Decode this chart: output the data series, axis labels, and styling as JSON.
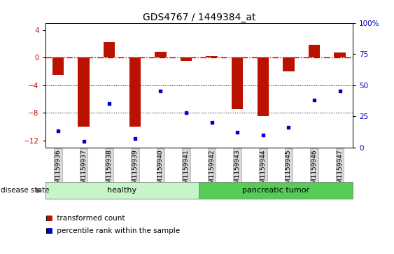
{
  "title": "GDS4767 / 1449384_at",
  "samples": [
    "GSM1159936",
    "GSM1159937",
    "GSM1159938",
    "GSM1159939",
    "GSM1159940",
    "GSM1159941",
    "GSM1159942",
    "GSM1159943",
    "GSM1159944",
    "GSM1159945",
    "GSM1159946",
    "GSM1159947"
  ],
  "transformed_count": [
    -2.5,
    -10.0,
    2.2,
    -10.0,
    0.8,
    -0.5,
    0.2,
    -7.5,
    -8.5,
    -2.0,
    1.8,
    0.7
  ],
  "percentile_rank": [
    13,
    5,
    35,
    7,
    45,
    28,
    20,
    12,
    10,
    16,
    38,
    45
  ],
  "right_yaxis_ticks": [
    0,
    25,
    50,
    75,
    100
  ],
  "right_yaxis_labels": [
    "0",
    "25",
    "50",
    "75",
    "100%"
  ],
  "ylim": [
    -13,
    5
  ],
  "yticks": [
    -12,
    -8,
    -4,
    0,
    4
  ],
  "healthy_indices": [
    0,
    5
  ],
  "tumor_indices": [
    6,
    11
  ],
  "healthy_color": "#c8f5c8",
  "tumor_color": "#55cc55",
  "bar_color": "#bb1100",
  "dot_color": "#0000cc",
  "background_color": "#ffffff",
  "left_tick_color": "#cc0000",
  "right_tick_color": "#0000cc",
  "hline_dash_color": "#cc0000",
  "hline_dot_color": "#000000",
  "disease_state_text": "disease state",
  "healthy_label": "healthy",
  "tumor_label": "pancreatic tumor",
  "legend_bar_label": "transformed count",
  "legend_dot_label": "percentile rank within the sample",
  "bar_width": 0.45
}
